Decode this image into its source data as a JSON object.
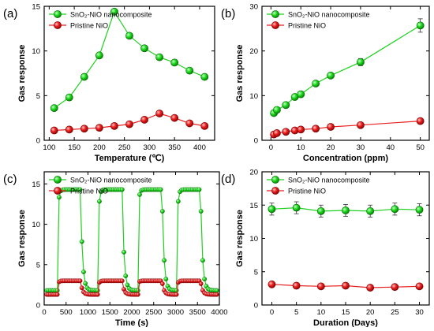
{
  "colors": {
    "green": "#00cc00",
    "green_line": "#1fd11f",
    "red": "#e60000",
    "red_line": "#e82020",
    "axis": "#000000"
  },
  "chart_data": [
    {
      "panel": "(a)",
      "type": "line",
      "xlabel": "Temperature (℃)",
      "ylabel": "Gas response",
      "xlim": [
        90,
        430
      ],
      "ylim": [
        0,
        15
      ],
      "xticks": [
        100,
        150,
        200,
        250,
        300,
        350,
        400
      ],
      "yticks": [
        0,
        5,
        10,
        15
      ],
      "legend": "top-left",
      "series": [
        {
          "name": "SnO₂-NiO nanocomposite",
          "color": "green",
          "x": [
            110,
            140,
            170,
            200,
            230,
            260,
            290,
            320,
            350,
            380,
            410
          ],
          "y": [
            3.6,
            4.8,
            7.1,
            9.5,
            14.4,
            11.7,
            10.3,
            9.3,
            8.7,
            7.8,
            7.1
          ]
        },
        {
          "name": "Pristine NiO",
          "color": "red",
          "x": [
            110,
            140,
            170,
            200,
            230,
            260,
            290,
            320,
            350,
            380,
            410
          ],
          "y": [
            1.1,
            1.2,
            1.3,
            1.4,
            1.6,
            1.8,
            2.3,
            3.0,
            2.5,
            1.9,
            1.6
          ]
        }
      ]
    },
    {
      "panel": "(b)",
      "type": "line",
      "xlabel": "Concentration (ppm)",
      "ylabel": "Gas response",
      "xlim": [
        -3,
        53
      ],
      "ylim": [
        0,
        30
      ],
      "xticks": [
        0,
        10,
        20,
        30,
        40,
        50
      ],
      "yticks": [
        0,
        10,
        20,
        30
      ],
      "legend": "top-left",
      "series": [
        {
          "name": "SnO₂-NiO nanocomposite",
          "color": "green",
          "x": [
            1,
            2,
            5,
            8,
            10,
            15,
            20,
            30,
            50
          ],
          "y": [
            6.1,
            6.8,
            7.9,
            9.7,
            10.3,
            12.7,
            14.5,
            17.5,
            25.7
          ],
          "err": [
            0.4,
            0.4,
            0.4,
            0.5,
            0.5,
            0.5,
            0.6,
            0.8,
            1.5
          ]
        },
        {
          "name": "Pristine NiO",
          "color": "red",
          "x": [
            1,
            2,
            5,
            8,
            10,
            15,
            20,
            30,
            50
          ],
          "y": [
            1.3,
            1.6,
            1.9,
            2.2,
            2.4,
            2.6,
            3.0,
            3.4,
            4.3
          ],
          "err": [
            0.2,
            0.2,
            0.2,
            0.2,
            0.2,
            0.2,
            0.2,
            0.3,
            0.3
          ]
        }
      ]
    },
    {
      "panel": "(c)",
      "type": "line",
      "xlabel": "Time (s)",
      "ylabel": "Gas response",
      "xlim": [
        0,
        4000
      ],
      "ylim": [
        0,
        16.5
      ],
      "xticks": [
        0,
        500,
        1000,
        1500,
        2000,
        2500,
        3000,
        3500,
        4000
      ],
      "yticks": [
        0,
        5,
        10,
        15
      ],
      "legend": "top-left",
      "cycles": [
        {
          "on": 320,
          "off": 830
        },
        {
          "on": 1250,
          "off": 1780
        },
        {
          "on": 2150,
          "off": 2690
        },
        {
          "on": 3050,
          "off": 3570
        }
      ],
      "series": [
        {
          "name": "SnO₂-NiO nanocomposite",
          "color": "green",
          "baseline": 1.8,
          "peak": 14.3
        },
        {
          "name": "Pristine NiO",
          "color": "red",
          "baseline": 1.3,
          "peak": 3.0
        }
      ]
    },
    {
      "panel": "(d)",
      "type": "line",
      "xlabel": "Duration (Days)",
      "ylabel": "Gas response",
      "xlim": [
        -2,
        32
      ],
      "ylim": [
        0,
        20
      ],
      "xticks": [
        0,
        5,
        10,
        15,
        20,
        25,
        30
      ],
      "yticks": [
        0,
        5,
        10,
        15,
        20
      ],
      "legend": "top-left",
      "series": [
        {
          "name": "SnO₂-NiO nanocomposite",
          "color": "green",
          "x": [
            0,
            5,
            10,
            15,
            20,
            25,
            30
          ],
          "y": [
            14.4,
            14.6,
            14.1,
            14.2,
            14.1,
            14.4,
            14.3
          ],
          "err": [
            0.9,
            0.9,
            0.9,
            0.9,
            0.9,
            0.9,
            0.9
          ]
        },
        {
          "name": "Pristine NiO",
          "color": "red",
          "x": [
            0,
            5,
            10,
            15,
            20,
            25,
            30
          ],
          "y": [
            3.1,
            2.9,
            2.8,
            2.9,
            2.6,
            2.7,
            2.8
          ],
          "err": [
            0.2,
            0.2,
            0.2,
            0.2,
            0.2,
            0.2,
            0.2
          ]
        }
      ]
    }
  ]
}
